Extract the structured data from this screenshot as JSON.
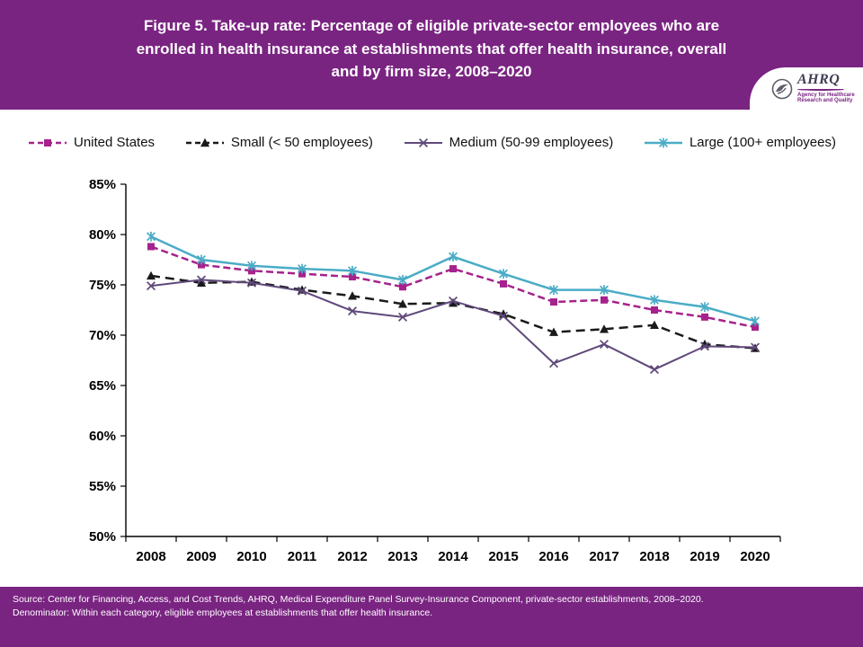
{
  "header": {
    "title": "Figure 5. Take-up rate: Percentage of eligible private-sector employees who are enrolled in health insurance at establishments that offer health insurance, overall and by firm size, 2008–2020"
  },
  "logo": {
    "acronym": "AHRQ",
    "tagline_line1": "Agency for Healthcare",
    "tagline_line2": "Research and Quality"
  },
  "colors": {
    "header_bg": "#7A2482",
    "footer_bg": "#7A2482",
    "axis": "#000000"
  },
  "chart_data": {
    "type": "line",
    "x": [
      2008,
      2009,
      2010,
      2011,
      2012,
      2013,
      2014,
      2015,
      2016,
      2017,
      2018,
      2019,
      2020
    ],
    "ylim": [
      50,
      85
    ],
    "ytick_step": 5,
    "ytick_suffix": "%",
    "grid": false,
    "legend_position": "top",
    "series": [
      {
        "name": "United States",
        "color": "#A6228C",
        "dash": "8 4",
        "marker": "square",
        "width": 2.5,
        "values": [
          78.8,
          77.0,
          76.4,
          76.1,
          75.8,
          74.8,
          76.6,
          75.1,
          73.3,
          73.5,
          72.5,
          71.8,
          70.8
        ]
      },
      {
        "name": "Small (< 50 employees)",
        "color": "#1A1A1A",
        "dash": "10 6",
        "marker": "triangle",
        "width": 2.5,
        "values": [
          75.9,
          75.2,
          75.3,
          74.5,
          73.9,
          73.1,
          73.2,
          72.1,
          70.3,
          70.6,
          71.0,
          69.1,
          68.7
        ]
      },
      {
        "name": "Medium (50-99 employees)",
        "color": "#5F497A",
        "dash": "",
        "marker": "x",
        "width": 2,
        "values": [
          74.9,
          75.5,
          75.2,
          74.4,
          72.4,
          71.8,
          73.4,
          71.9,
          67.2,
          69.1,
          66.6,
          68.9,
          68.8
        ]
      },
      {
        "name": "Large (100+ employees)",
        "color": "#4BACC6",
        "dash": "",
        "marker": "asterisk",
        "width": 2.5,
        "values": [
          79.8,
          77.5,
          76.9,
          76.6,
          76.4,
          75.5,
          77.8,
          76.1,
          74.5,
          74.5,
          73.5,
          72.8,
          71.4
        ]
      }
    ]
  },
  "footer": {
    "source": "Source: Center for Financing, Access, and Cost Trends, AHRQ, Medical Expenditure Panel Survey-Insurance Component, private-sector establishments, 2008–2020.",
    "denominator": "Denominator: Within each category, eligible employees at establishments that offer health insurance."
  }
}
